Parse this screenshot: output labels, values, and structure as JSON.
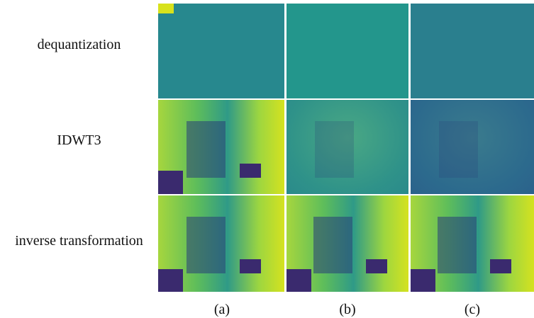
{
  "row_labels": [
    "dequantization",
    "IDWT3",
    "inverse transformation"
  ],
  "column_labels": [
    "(a)",
    "(b)",
    "(c)"
  ]
}
